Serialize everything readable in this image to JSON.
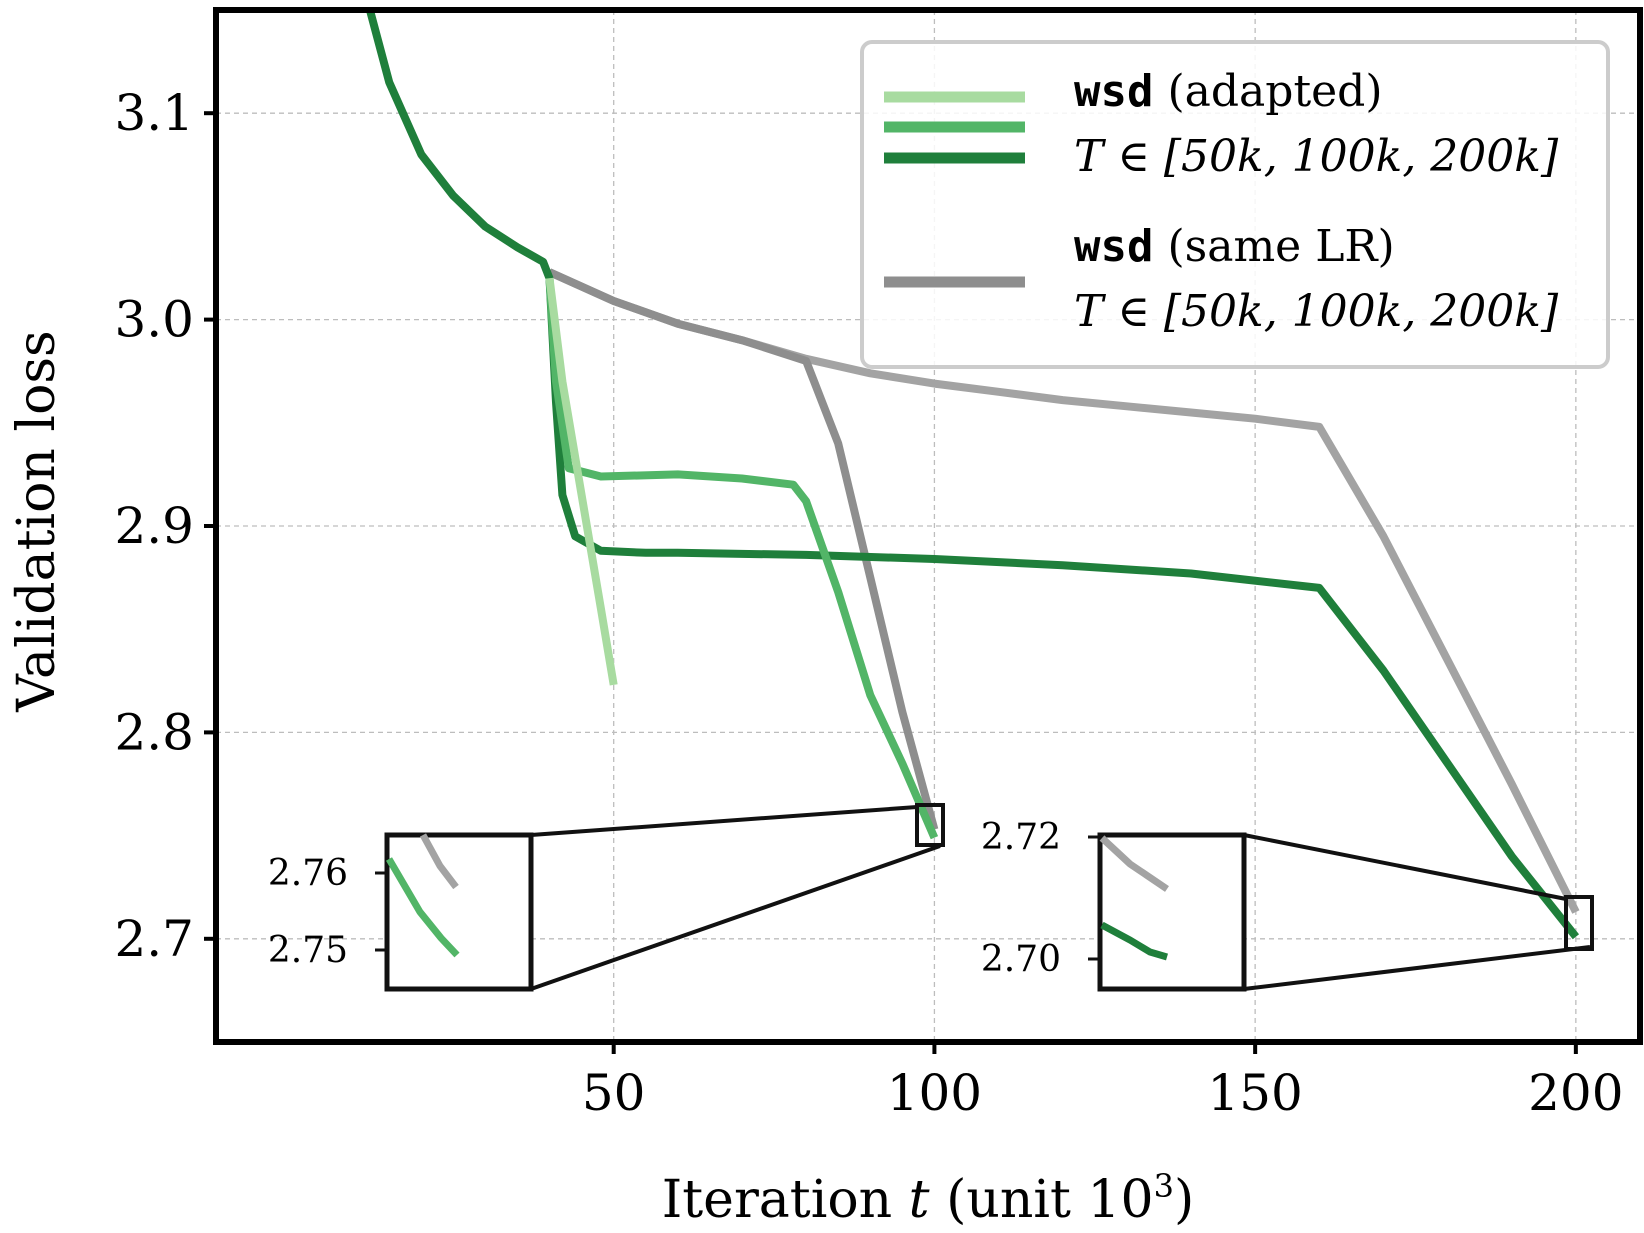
{
  "chart_data": {
    "type": "line",
    "title": "",
    "xlabel": "Iteration",
    "xlabel_var": "t",
    "xlabel_unit": "(unit 10",
    "xlabel_exp": "3",
    "xlabel_close": ")",
    "ylabel": "Validation loss",
    "xlim": [
      -12,
      210
    ],
    "ylim": [
      2.65,
      3.15
    ],
    "xticks": [
      50,
      100,
      150,
      200
    ],
    "xtick_labels": [
      "50",
      "100",
      "150",
      "200"
    ],
    "yticks": [
      2.7,
      2.8,
      2.9,
      3.0,
      3.1
    ],
    "ytick_labels": [
      "2.7",
      "2.8",
      "2.9",
      "3.0",
      "3.1"
    ],
    "grid": true,
    "legend_position": "top-right",
    "legend": [
      {
        "mono": "wsd",
        "text": "(adapted)",
        "math": "T ∈ [50k, 100k, 200k]"
      },
      {
        "mono": "wsd",
        "text": "(same LR)",
        "math": "T ∈ [50k, 100k, 200k]"
      }
    ],
    "series": [
      {
        "name": "wsd (same LR) T=200k",
        "color": "#a3a3a3",
        "x": [
          40,
          50,
          60,
          70,
          80,
          90,
          100,
          110,
          120,
          130,
          140,
          150,
          160,
          170,
          180,
          190,
          200
        ],
        "y": [
          3.023,
          3.009,
          2.998,
          2.99,
          2.981,
          2.974,
          2.969,
          2.965,
          2.961,
          2.958,
          2.955,
          2.952,
          2.948,
          2.895,
          2.835,
          2.775,
          2.713
        ]
      },
      {
        "name": "wsd (same LR) T=100k",
        "color": "#8e8e8e",
        "x": [
          40,
          50,
          60,
          70,
          80,
          85,
          90,
          95,
          100
        ],
        "y": [
          3.023,
          3.009,
          2.998,
          2.99,
          2.98,
          2.94,
          2.875,
          2.81,
          2.753
        ]
      },
      {
        "name": "wsd (adapted) T=200k",
        "color": "#1f7f3b",
        "x": [
          12,
          15,
          20,
          25,
          30,
          35,
          39,
          40,
          41,
          42,
          44,
          48,
          55,
          60,
          80,
          100,
          120,
          140,
          160,
          170,
          180,
          190,
          200
        ],
        "y": [
          3.15,
          3.115,
          3.08,
          3.06,
          3.045,
          3.035,
          3.028,
          3.02,
          2.96,
          2.915,
          2.895,
          2.888,
          2.887,
          2.887,
          2.886,
          2.884,
          2.881,
          2.877,
          2.87,
          2.83,
          2.785,
          2.74,
          2.701
        ]
      },
      {
        "name": "wsd (adapted) T=100k",
        "color": "#52b567",
        "x": [
          40,
          41,
          43,
          48,
          60,
          70,
          78,
          80,
          85,
          90,
          95,
          100
        ],
        "y": [
          3.02,
          2.97,
          2.928,
          2.924,
          2.925,
          2.923,
          2.92,
          2.912,
          2.868,
          2.818,
          2.785,
          2.749
        ]
      },
      {
        "name": "wsd (adapted) T=50k",
        "color": "#a8dba0",
        "x": [
          40,
          42,
          45,
          48,
          50
        ],
        "y": [
          3.02,
          2.97,
          2.915,
          2.86,
          2.823
        ]
      }
    ],
    "insets": [
      {
        "zoom_center": 100,
        "tick_labels": [
          "2.76",
          "2.75"
        ]
      },
      {
        "zoom_center": 200,
        "tick_labels": [
          "2.72",
          "2.70"
        ]
      }
    ]
  }
}
